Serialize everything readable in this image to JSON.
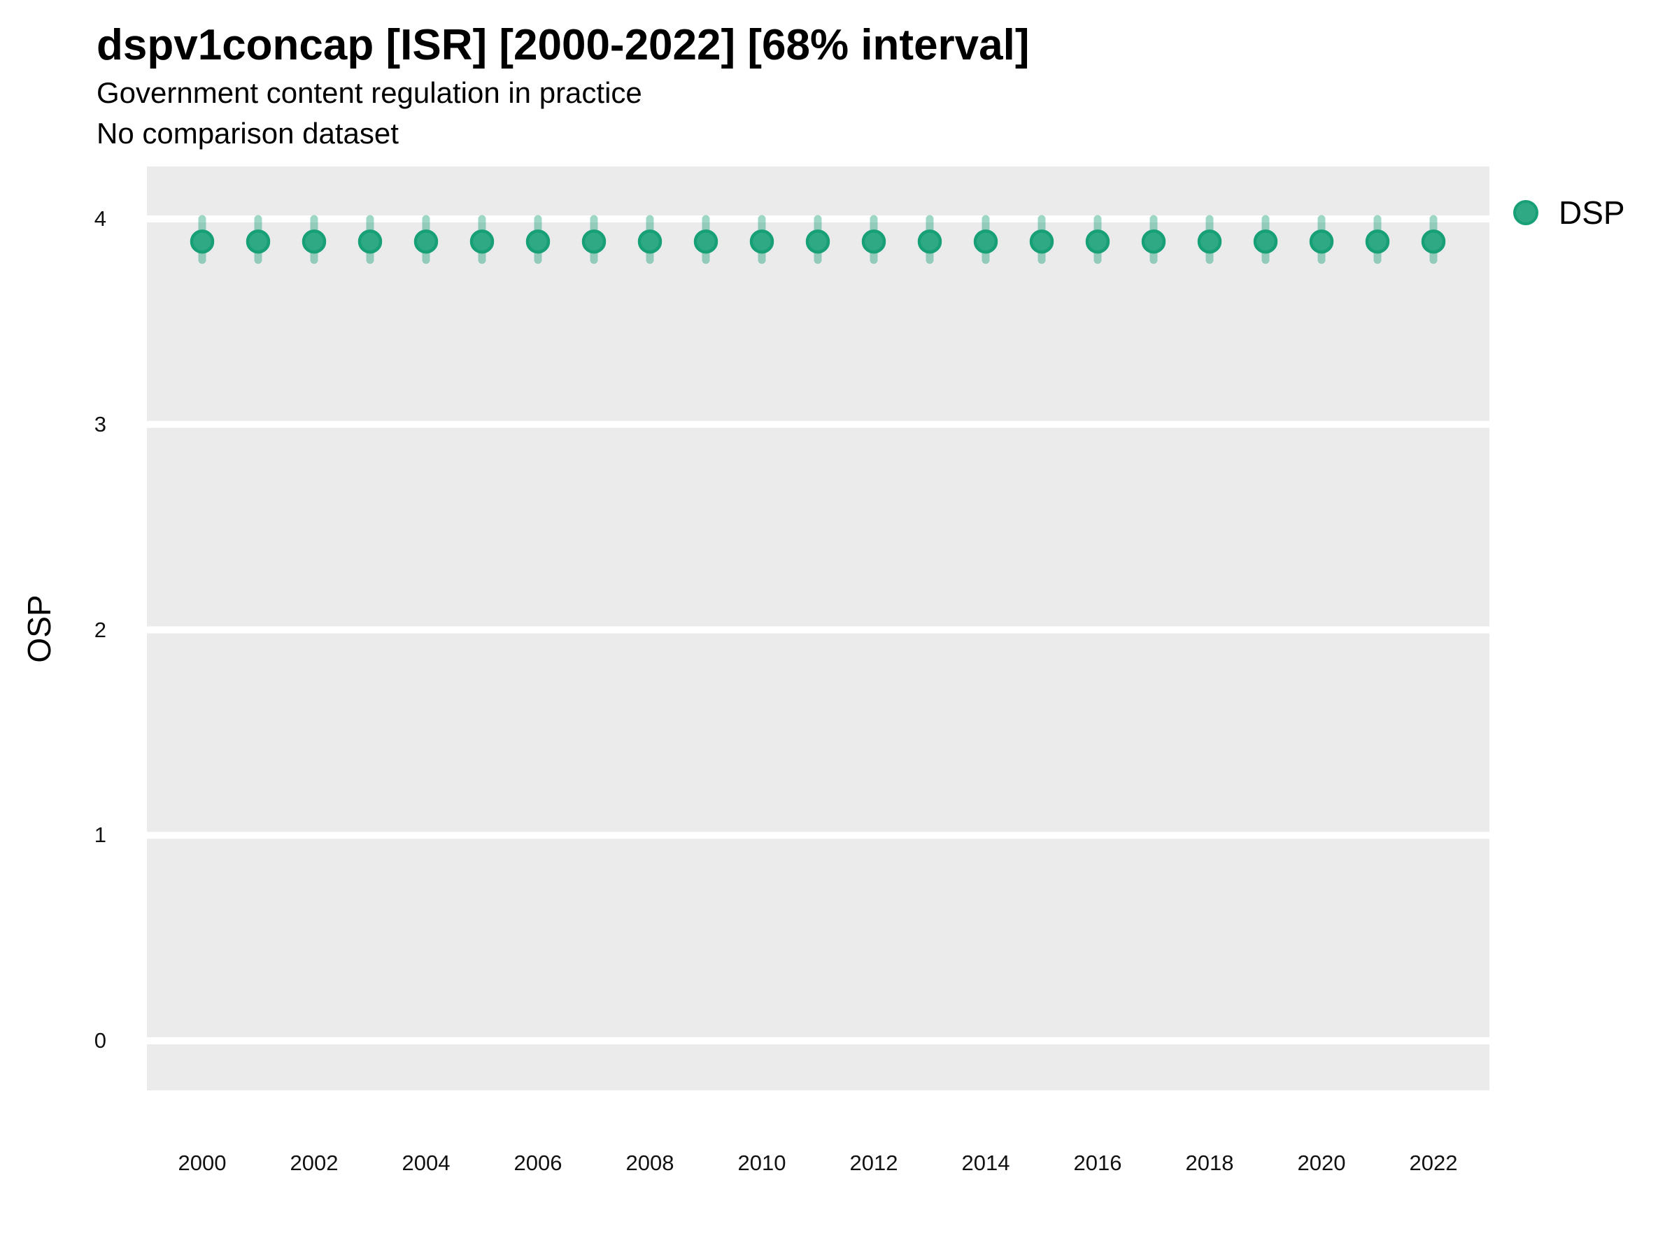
{
  "header": {
    "title": "dspv1concap [ISR] [2000-2022] [68% interval]",
    "subtitle": "Government content regulation in practice",
    "note": "No comparison dataset"
  },
  "colors": {
    "panel_background": "#ebebeb",
    "gridline": "#ffffff",
    "point_fill": "#2fa983",
    "point_stroke": "#17a076",
    "interval_band": "rgba(23,160,118,0.42)",
    "text": "#000000"
  },
  "legend": {
    "items": [
      {
        "label": "DSP",
        "color": "#2fa983"
      }
    ]
  },
  "chart_data": {
    "type": "scatter",
    "subtype": "pointrange",
    "title": "dspv1concap [ISR] [2000-2022] [68% interval]",
    "subtitle": "Government content regulation in practice",
    "note": "No comparison dataset",
    "xlabel": "",
    "ylabel": "OSP",
    "xlim": [
      1999,
      2023
    ],
    "ylim": [
      -0.25,
      4.25
    ],
    "yticks": [
      0,
      1,
      2,
      3,
      4
    ],
    "xticks": [
      2000,
      2002,
      2004,
      2006,
      2008,
      2010,
      2012,
      2014,
      2016,
      2018,
      2020,
      2022
    ],
    "grid": "horizontal-major-white-on-gray",
    "legend_position": "right-top",
    "interval_level": "68%",
    "series": [
      {
        "name": "DSP",
        "x": [
          2000,
          2001,
          2002,
          2003,
          2004,
          2005,
          2006,
          2007,
          2008,
          2009,
          2010,
          2011,
          2012,
          2013,
          2014,
          2015,
          2016,
          2017,
          2018,
          2019,
          2020,
          2021,
          2022
        ],
        "est": [
          3.89,
          3.89,
          3.89,
          3.89,
          3.89,
          3.89,
          3.89,
          3.89,
          3.89,
          3.89,
          3.89,
          3.89,
          3.89,
          3.89,
          3.89,
          3.89,
          3.89,
          3.89,
          3.89,
          3.89,
          3.89,
          3.89,
          3.89
        ],
        "lo": [
          3.8,
          3.8,
          3.8,
          3.8,
          3.8,
          3.8,
          3.8,
          3.8,
          3.8,
          3.8,
          3.8,
          3.8,
          3.8,
          3.8,
          3.8,
          3.8,
          3.8,
          3.8,
          3.8,
          3.8,
          3.8,
          3.8,
          3.8
        ],
        "hi": [
          4.0,
          4.0,
          4.0,
          4.0,
          4.0,
          4.0,
          4.0,
          4.0,
          4.0,
          4.0,
          4.0,
          4.0,
          4.0,
          4.0,
          4.0,
          4.0,
          4.0,
          4.0,
          4.0,
          4.0,
          4.0,
          4.0,
          4.0
        ]
      }
    ]
  }
}
